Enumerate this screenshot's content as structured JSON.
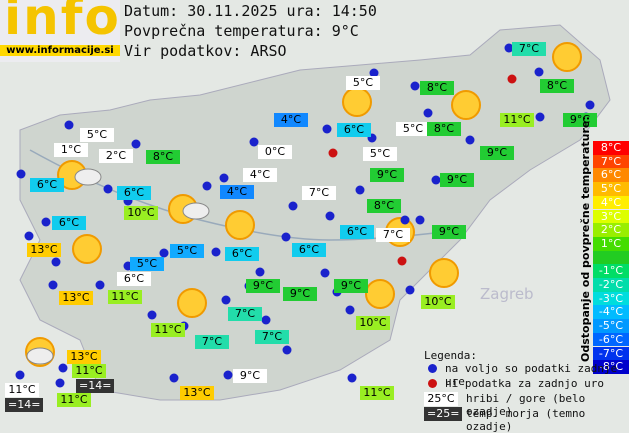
{
  "header": {
    "logo": "info",
    "site": "www.informacije.si",
    "date": "Datum: 30.11.2025 ura: 14:50",
    "average": "Povprečna temperatura: 9°C",
    "source": "Vir podatkov: ARSO"
  },
  "map": {
    "place": "Zagreb",
    "temperatures": [
      "7°C",
      "5°C",
      "8°C",
      "8°C",
      "4°C",
      "6°C",
      "5°C",
      "8°C",
      "11°C",
      "9°C",
      "5°C",
      "1°C",
      "2°C",
      "8°C",
      "0°C",
      "5°C",
      "9°C",
      "6°C",
      "4°C",
      "9°C",
      "9°C",
      "6°C",
      "4°C",
      "7°C",
      "10°C",
      "8°C",
      "6°C",
      "6°C",
      "7°C",
      "9°C",
      "13°C",
      "5°C",
      "6°C",
      "6°C",
      "5°C",
      "6°C",
      "9°C",
      "9°C",
      "13°C",
      "11°C",
      "9°C",
      "10°C",
      "7°C",
      "10°C",
      "11°C",
      "7°C",
      "7°C",
      "13°C",
      "11°C",
      "=14=",
      "9°C",
      "11°C",
      "13°C",
      "11°C",
      "11°C",
      "=14="
    ]
  },
  "scale": {
    "title": "Odstopanje od povprečne temperature:",
    "labels": [
      "8°C",
      "7°C",
      "6°C",
      "5°C",
      "4°C",
      "3°C",
      "2°C",
      "1°C",
      "-1°C",
      "-2°C",
      "-3°C",
      "-4°C",
      "-5°C",
      "-6°C",
      "-7°C",
      "-8°C"
    ]
  },
  "legend": {
    "title": "Legenda:",
    "available": "na voljo so podatki zadnje ure",
    "missing": "ni podatka za zadnjo uro",
    "mountain_sample": "25°C",
    "mountain": "hribi / gore (belo ozadje)",
    "sea_sample": "=25=",
    "sea": "temp. morja (temno ozadje)"
  }
}
